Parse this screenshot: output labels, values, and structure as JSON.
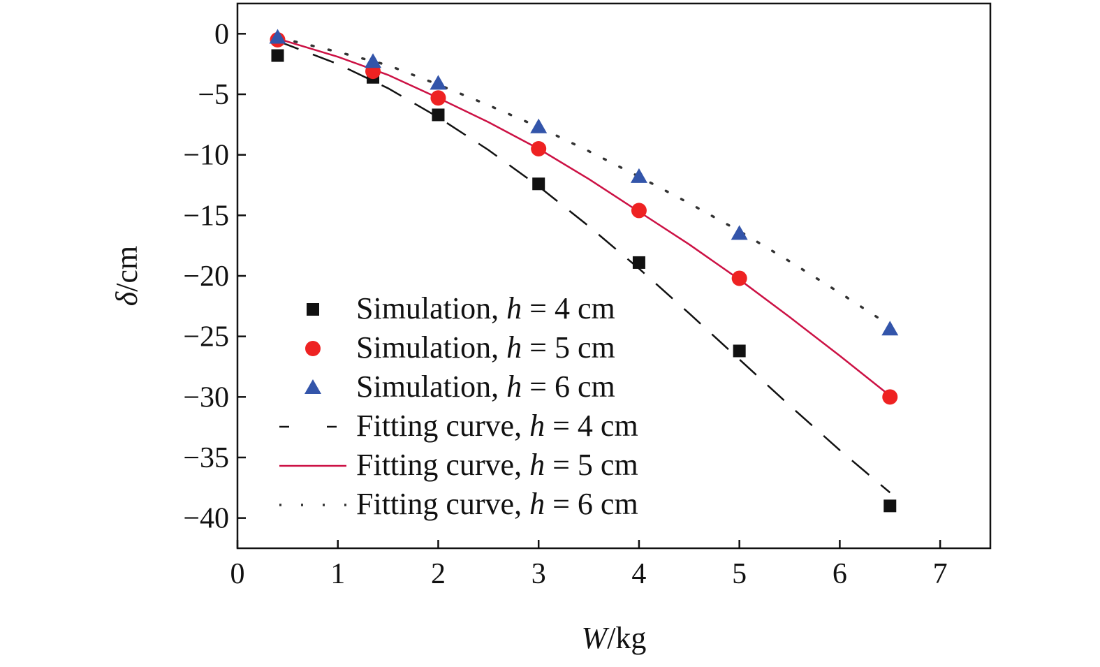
{
  "chart_data": {
    "type": "scatter",
    "xlabel": {
      "var": "W",
      "unit": "/kg"
    },
    "ylabel": {
      "var": "δ",
      "unit": "/cm"
    },
    "xlim": [
      0,
      7.5
    ],
    "ylim": [
      -42.5,
      2.5
    ],
    "x_ticks": [
      0,
      1,
      2,
      3,
      4,
      5,
      6,
      7
    ],
    "y_ticks": [
      0,
      -5,
      -10,
      -15,
      -20,
      -25,
      -30,
      -35,
      -40
    ],
    "y_tick_labels": [
      "0",
      "−5",
      "−10",
      "−15",
      "−20",
      "−25",
      "−30",
      "−35",
      "−40"
    ],
    "legend_position": "lower-left",
    "series": [
      {
        "name": "Simulation, h = 4 cm",
        "label_prefix": "Simulation, ",
        "label_var": "h",
        "label_suffix": " = 4 cm",
        "kind": "scatter",
        "marker": "square",
        "color": "#111111",
        "x": [
          0.4,
          1.35,
          2,
          3,
          4,
          5,
          6.5
        ],
        "y": [
          -1.8,
          -3.6,
          -6.7,
          -12.4,
          -18.9,
          -26.2,
          -39
        ]
      },
      {
        "name": "Simulation, h = 5 cm",
        "label_prefix": "Simulation, ",
        "label_var": "h",
        "label_suffix": " = 5 cm",
        "kind": "scatter",
        "marker": "circle",
        "color": "#ee2222",
        "x": [
          0.4,
          1.35,
          2,
          3,
          4,
          5,
          6.5
        ],
        "y": [
          -0.5,
          -3.1,
          -5.3,
          -9.5,
          -14.6,
          -20.2,
          -30
        ]
      },
      {
        "name": "Simulation, h = 6 cm",
        "label_prefix": "Simulation, ",
        "label_var": "h",
        "label_suffix": " = 6 cm",
        "kind": "scatter",
        "marker": "triangle",
        "color": "#3355aa",
        "x": [
          0.4,
          1.35,
          2,
          3,
          4,
          5,
          6.5
        ],
        "y": [
          -0.3,
          -2.3,
          -4.1,
          -7.7,
          -11.8,
          -16.5,
          -24.4
        ]
      },
      {
        "name": "Fitting curve, h = 4 cm",
        "label_prefix": "Fitting curve, ",
        "label_var": "h",
        "label_suffix": " = 4 cm",
        "kind": "line",
        "style": "dashed",
        "color": "#111111",
        "x": [
          0.4,
          1,
          1.5,
          2,
          2.5,
          3,
          3.5,
          4,
          4.5,
          5,
          5.5,
          6,
          6.5
        ],
        "y": [
          -0.6,
          -2.5,
          -4.5,
          -6.9,
          -9.6,
          -12.6,
          -15.9,
          -19.4,
          -23.1,
          -26.9,
          -30.7,
          -34.4,
          -37.9
        ]
      },
      {
        "name": "Fitting curve, h = 5 cm",
        "label_prefix": "Fitting curve, ",
        "label_var": "h",
        "label_suffix": " = 5 cm",
        "kind": "line",
        "style": "solid",
        "color": "#cc1144",
        "x": [
          0.4,
          1,
          1.5,
          2,
          2.5,
          3,
          3.5,
          4,
          4.5,
          5,
          5.5,
          6,
          6.5
        ],
        "y": [
          -0.4,
          -1.9,
          -3.4,
          -5.3,
          -7.3,
          -9.5,
          -12.0,
          -14.7,
          -17.4,
          -20.3,
          -23.4,
          -26.6,
          -29.9
        ]
      },
      {
        "name": "Fitting curve, h = 6 cm",
        "label_prefix": "Fitting curve, ",
        "label_var": "h",
        "label_suffix": " = 6 cm",
        "kind": "line",
        "style": "dotted",
        "color": "#333333",
        "x": [
          0.4,
          1,
          1.5,
          2,
          2.5,
          3,
          3.5,
          4,
          4.5,
          5,
          5.5,
          6,
          6.5
        ],
        "y": [
          -0.3,
          -1.5,
          -2.6,
          -4.2,
          -5.9,
          -7.7,
          -9.7,
          -11.8,
          -14.0,
          -16.3,
          -18.8,
          -21.4,
          -24.1
        ]
      }
    ]
  }
}
